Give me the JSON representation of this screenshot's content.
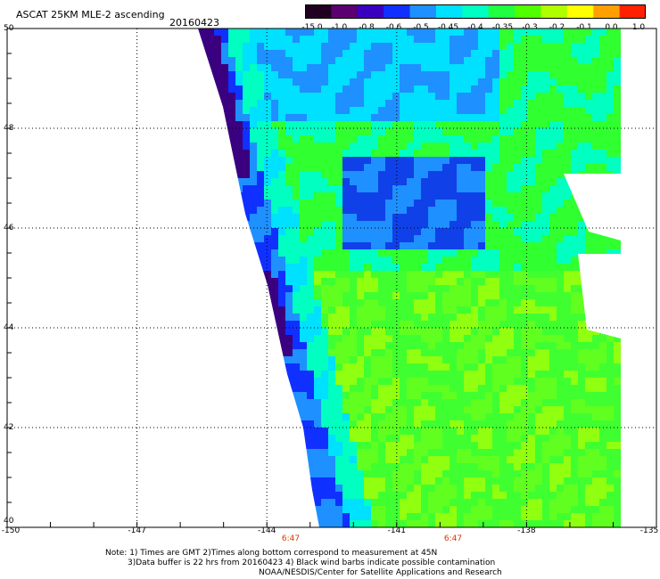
{
  "header": {
    "title": "ASCAT 25KM MLE-2 ascending",
    "date": "20160423"
  },
  "colorbar": {
    "labels": [
      "-15.0",
      "-1.0",
      "-0.8",
      "-0.6",
      "-0.5",
      "-0.45",
      "-0.4",
      "-0.35",
      "-0.3",
      "-0.2",
      "-0.1",
      "0.0",
      "1.0"
    ],
    "colors": [
      "#200020",
      "#5a0070",
      "#3a00c0",
      "#1030ff",
      "#1e90ff",
      "#00e0ff",
      "#00ffc0",
      "#20ff40",
      "#50ff00",
      "#b0ff00",
      "#ffff00",
      "#ffa000",
      "#ff2000"
    ]
  },
  "axes": {
    "lat_labels": [
      "50",
      "48",
      "46",
      "44",
      "42",
      "40"
    ],
    "lon_labels": [
      "-150",
      "-147",
      "-144",
      "-141",
      "-138",
      "-135"
    ],
    "lat_range": [
      40,
      50
    ],
    "lon_range": [
      -150,
      -135
    ]
  },
  "time_labels": [
    "6:47",
    "6:47"
  ],
  "notes": {
    "line1": "Note: 1) Times are GMT 2)Times along bottom correspond to measurement at 45N",
    "line2": "3)Data buffer is 22 hrs from 20160423 4) Black wind barbs indicate possible contamination",
    "line3": "NOAA/NESDIS/Center for Satellite Applications and Research"
  }
}
